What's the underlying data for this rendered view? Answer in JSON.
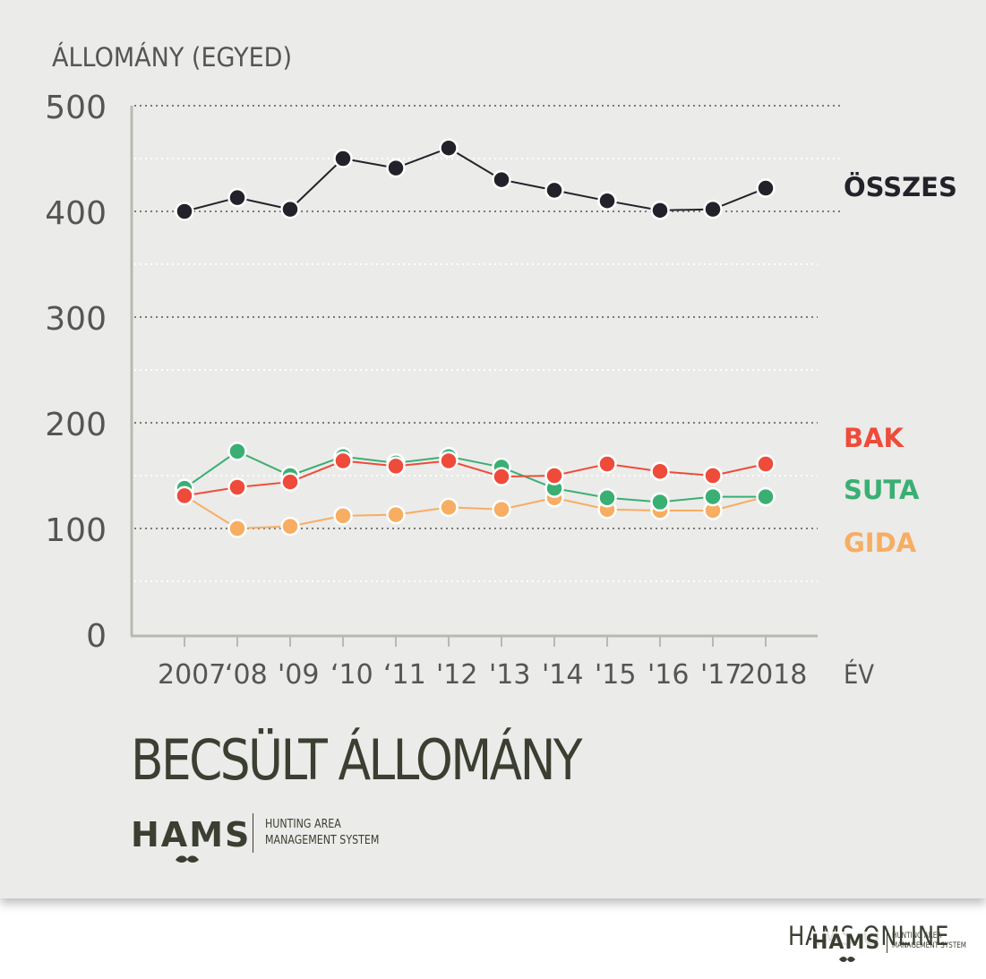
{
  "chart_data": {
    "type": "line",
    "ylabel": "ÁLLOMÁNY (EGYED)",
    "xlabel": "ÉV",
    "title": "BECSÜLT ÁLLOMÁNY",
    "ylim": [
      0,
      500
    ],
    "yticks": [
      0,
      100,
      200,
      300,
      400,
      500
    ],
    "categories": [
      "2007",
      "‘08",
      "'09",
      "‘10",
      "‘11",
      "'12",
      "'13",
      "'14",
      "'15",
      "'16",
      "'17",
      "2018"
    ],
    "grid": "dotted horizontal",
    "legend": "right, label beside series",
    "series": [
      {
        "name": "ÖSSZES",
        "color": "#23222a",
        "values": [
          400,
          413,
          402,
          450,
          441,
          460,
          430,
          420,
          410,
          401,
          402,
          422
        ]
      },
      {
        "name": "SUTA",
        "color": "#3aaf73",
        "values": [
          138,
          173,
          150,
          168,
          162,
          168,
          158,
          138,
          129,
          125,
          130,
          130
        ]
      },
      {
        "name": "BAK",
        "color": "#ee4b3a",
        "values": [
          131,
          139,
          144,
          164,
          159,
          164,
          149,
          150,
          161,
          154,
          150,
          161
        ]
      },
      {
        "name": "GIDA",
        "color": "#f7ad62",
        "values": [
          131,
          100,
          102,
          112,
          113,
          120,
          118,
          129,
          118,
          117,
          117,
          130
        ]
      }
    ]
  },
  "brand": {
    "name": "HAMS",
    "tagline_line1": "HUNTING AREA",
    "tagline_line2": "MANAGEMENT SYSTEM"
  },
  "footer": {
    "text": "HAMS ONLINE",
    "logo_name": "HAMS",
    "logo_tagline_line1": "HUNTING AREA",
    "logo_tagline_line2": "MANAGEMENT SYSTEM"
  }
}
